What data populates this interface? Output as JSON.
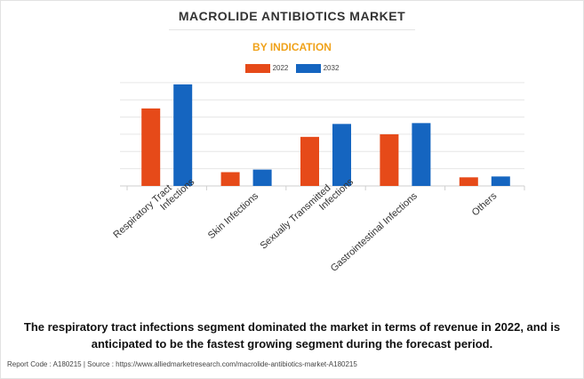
{
  "title": "MACROLIDE ANTIBIOTICS MARKET",
  "subtitle": "BY INDICATION",
  "colors": {
    "2022": "#e64a19",
    "2032": "#1565c0",
    "subtitle": "#f0a21a",
    "grid": "#e6e6e6"
  },
  "chart_data": {
    "type": "bar",
    "categories": [
      "Respiratory Tract\nInfections",
      "Skin Infections",
      "Sexually Transmitted\nInfections",
      "Gastrointestinal Infections",
      "Others"
    ],
    "series": [
      {
        "name": "2022",
        "values": [
          4.5,
          0.8,
          2.85,
          3.0,
          0.5
        ]
      },
      {
        "name": "2032",
        "values": [
          5.9,
          0.95,
          3.6,
          3.65,
          0.55
        ]
      }
    ],
    "ylim": [
      0,
      6.2
    ],
    "yticks": [
      0,
      1,
      2,
      3,
      4,
      5,
      6
    ],
    "xlabel": "",
    "ylabel": "",
    "grid": true,
    "legend": "top-center"
  },
  "summary": "The respiratory tract infections segment dominated the market in terms of revenue in 2022, and is anticipated to be the fastest growing segment during the forecast period.",
  "footer": "Report Code : A180215  |  Source : https://www.alliedmarketresearch.com/macrolide-antibiotics-market-A180215"
}
